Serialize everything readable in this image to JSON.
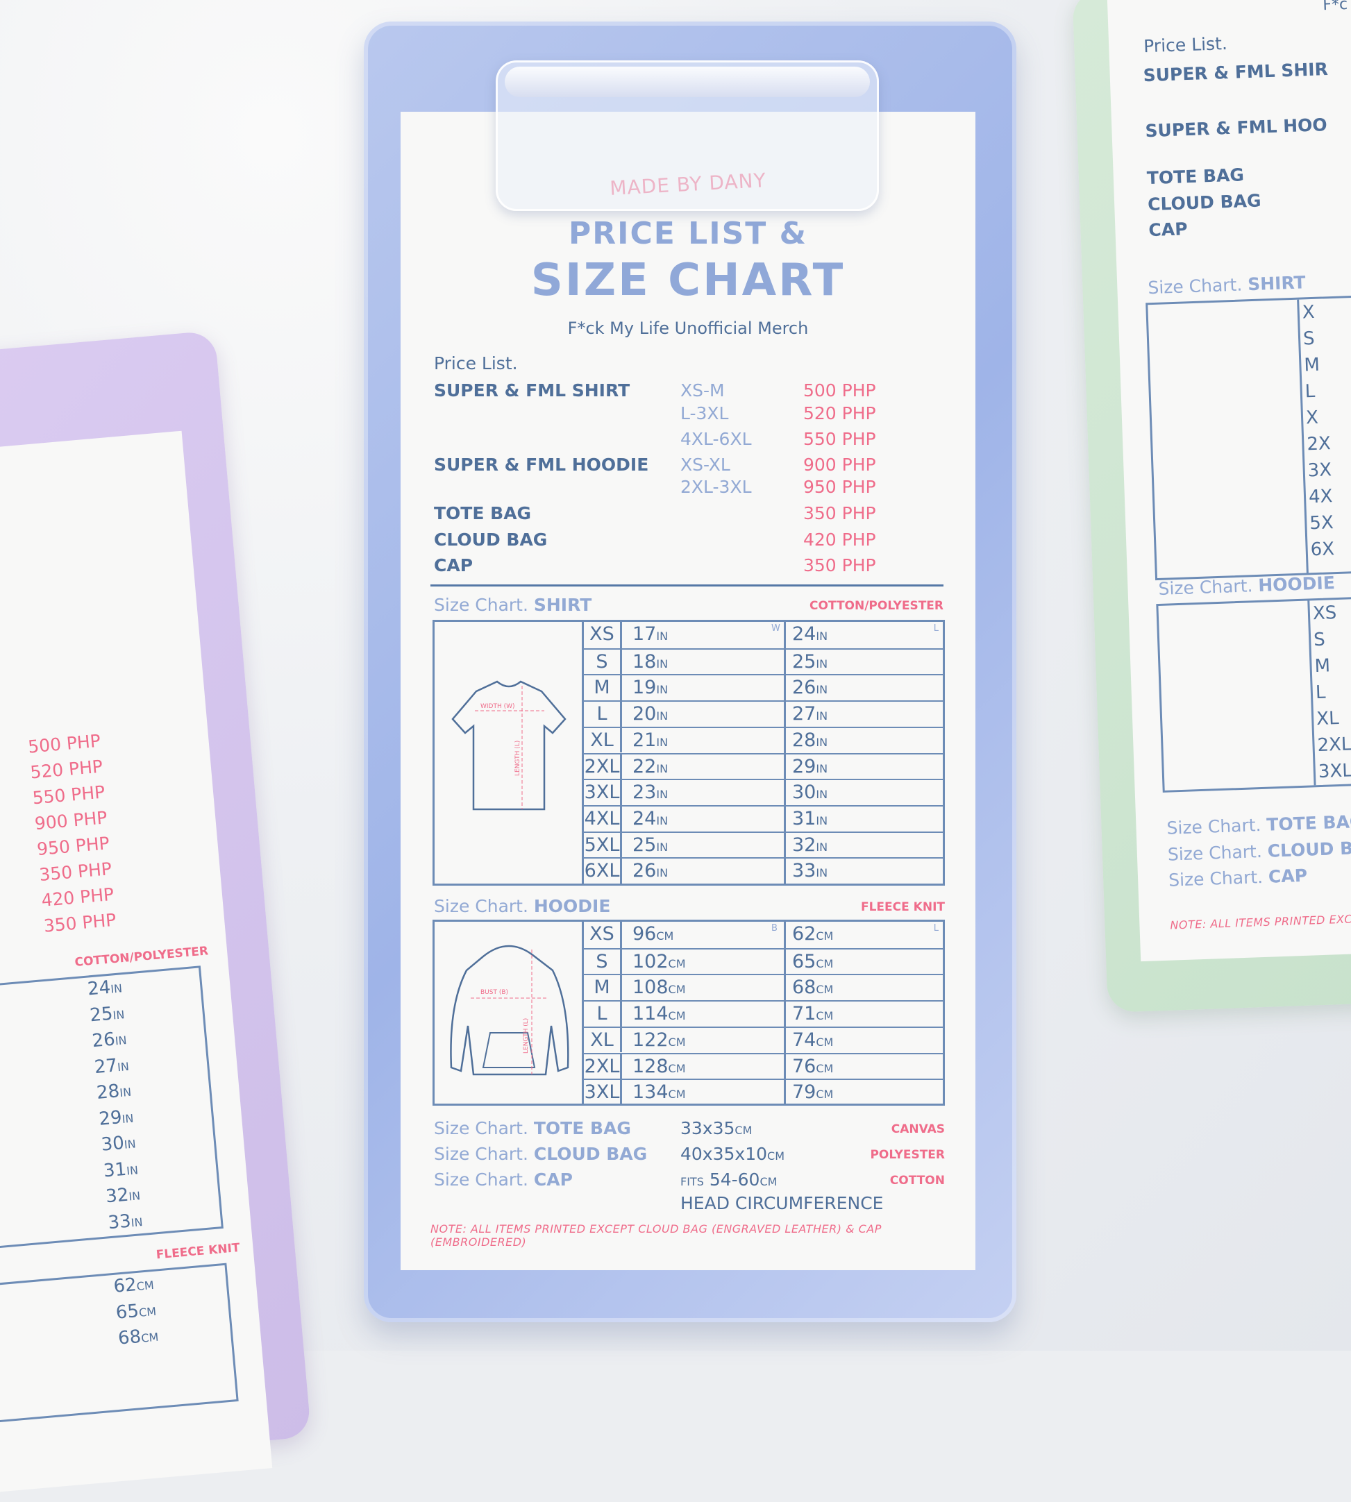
{
  "header": {
    "made_by": "MADE BY DANY",
    "title_line1": "PRICE LIST &",
    "title_line2": "SIZE CHART",
    "subtitle": "F*ck My Life Unofficial Merch"
  },
  "price_list": {
    "heading": "Price List.",
    "items": [
      {
        "name": "SUPER & FML SHIRT",
        "size": "XS-M",
        "price": "500 PHP"
      },
      {
        "name": "",
        "size": "L-3XL",
        "price": "520 PHP"
      },
      {
        "name": "",
        "size": "4XL-6XL",
        "price": "550 PHP"
      },
      {
        "name": "SUPER & FML HOODIE",
        "size": "XS-XL",
        "price": "900 PHP"
      },
      {
        "name": "",
        "size": "2XL-3XL",
        "price": "950 PHP"
      },
      {
        "name": "TOTE BAG",
        "size": "",
        "price": "350 PHP"
      },
      {
        "name": "CLOUD BAG",
        "size": "",
        "price": "420 PHP"
      },
      {
        "name": "CAP",
        "size": "",
        "price": "350 PHP"
      }
    ]
  },
  "size_chart_label": "Size Chart.",
  "shirt": {
    "title": "SHIRT",
    "material": "COTTON/POLYESTER",
    "col1": "W",
    "col2": "L",
    "unit": "IN",
    "width_label": "WIDTH (W)",
    "length_label": "LENGTH (L)",
    "rows": [
      [
        "XS",
        "17",
        "24"
      ],
      [
        "S",
        "18",
        "25"
      ],
      [
        "M",
        "19",
        "26"
      ],
      [
        "L",
        "20",
        "27"
      ],
      [
        "XL",
        "21",
        "28"
      ],
      [
        "2XL",
        "22",
        "29"
      ],
      [
        "3XL",
        "23",
        "30"
      ],
      [
        "4XL",
        "24",
        "31"
      ],
      [
        "5XL",
        "25",
        "32"
      ],
      [
        "6XL",
        "26",
        "33"
      ]
    ]
  },
  "hoodie": {
    "title": "HOODIE",
    "material": "FLEECE KNIT",
    "col1": "B",
    "col2": "L",
    "unit": "CM",
    "bust_label": "BUST (B)",
    "length_label": "LENGTH (L)",
    "rows": [
      [
        "XS",
        "96",
        "62"
      ],
      [
        "S",
        "102",
        "65"
      ],
      [
        "M",
        "108",
        "68"
      ],
      [
        "L",
        "114",
        "71"
      ],
      [
        "XL",
        "122",
        "74"
      ],
      [
        "2XL",
        "128",
        "76"
      ],
      [
        "3XL",
        "134",
        "79"
      ]
    ]
  },
  "extras": [
    {
      "title": "TOTE BAG",
      "size": "33x35",
      "unit": "CM",
      "prefix": "",
      "material": "CANVAS"
    },
    {
      "title": "CLOUD BAG",
      "size": "40x35x10",
      "unit": "CM",
      "prefix": "",
      "material": "POLYESTER"
    },
    {
      "title": "CAP",
      "size": "54-60",
      "unit": "CM",
      "prefix": "FITS",
      "material": "COTTON",
      "note": "HEAD CIRCUMFERENCE"
    }
  ],
  "note": "NOTE: ALL ITEMS PRINTED EXCEPT CLOUD BAG (ENGRAVED LEATHER) & CAP (EMBROIDERED)",
  "right_card": {
    "corner": "F*c",
    "price_heading": "Price List.",
    "items": [
      "SUPER & FML SHIR",
      "SUPER & FML HOO",
      "TOTE BAG",
      "CLOUD BAG",
      "CAP"
    ],
    "shirt_title": "SHIRT",
    "shirt_sizes": [
      "X",
      "S",
      "M",
      "L",
      "X",
      "2X",
      "3X",
      "4X",
      "5X",
      "6X"
    ],
    "hoodie_title": "HOODIE",
    "hoodie_sizes": [
      "XS",
      "S",
      "M",
      "L",
      "XL",
      "2XL",
      "3XL"
    ],
    "extras": [
      "TOTE BAG",
      "CLOUD BA",
      "CAP"
    ],
    "note": "NOTE: ALL ITEMS PRINTED EXCEPT"
  },
  "left_card": {
    "prices": [
      "500 PHP",
      "520 PHP",
      "550 PHP",
      "900 PHP",
      "950 PHP",
      "350 PHP",
      "420 PHP",
      "350 PHP"
    ],
    "shirt_material": "COTTON/POLYESTER",
    "shirt_l": [
      "24",
      "25",
      "26",
      "27",
      "28",
      "29",
      "30",
      "31",
      "32",
      "33"
    ],
    "hoodie_material": "FLEECE KNIT",
    "hoodie_l": [
      "62",
      "65",
      "68"
    ]
  },
  "colors": {
    "navy": "#4f6f99",
    "light_blue": "#92a9d4",
    "pink": "#ef6c8a",
    "board_blue": "#a9bcea",
    "board_green": "#cde5d0",
    "board_purple": "#d4c5ee"
  }
}
